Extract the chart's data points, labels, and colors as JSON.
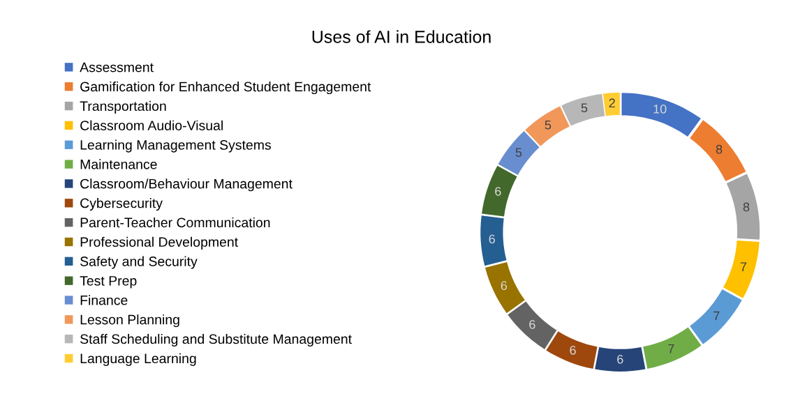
{
  "chart_data": {
    "type": "donut",
    "title": "Uses of AI in Education",
    "categories": [
      "Assessment",
      "Gamification for Enhanced Student Engagement",
      "Transportation",
      "Classroom Audio-Visual",
      "Learning Management Systems",
      "Maintenance",
      "Classroom/Behaviour Management",
      "Cybersecurity",
      "Parent-Teacher Communication",
      "Professional Development",
      "Safety and Security",
      "Test Prep",
      "Finance",
      "Lesson Planning",
      "Staff Scheduling and Substitute Management",
      "Language Learning"
    ],
    "values": [
      10,
      8,
      8,
      7,
      7,
      7,
      6,
      6,
      6,
      6,
      6,
      6,
      5,
      5,
      5,
      2
    ],
    "colors": [
      "#4472c4",
      "#ed7d31",
      "#a5a5a5",
      "#ffc000",
      "#5b9bd5",
      "#70ad47",
      "#264478",
      "#9e480e",
      "#636363",
      "#997300",
      "#255e91",
      "#43682b",
      "#698ed0",
      "#f1975a",
      "#b7b7b7",
      "#ffcd33"
    ],
    "data_labels": true,
    "legend": "left"
  }
}
